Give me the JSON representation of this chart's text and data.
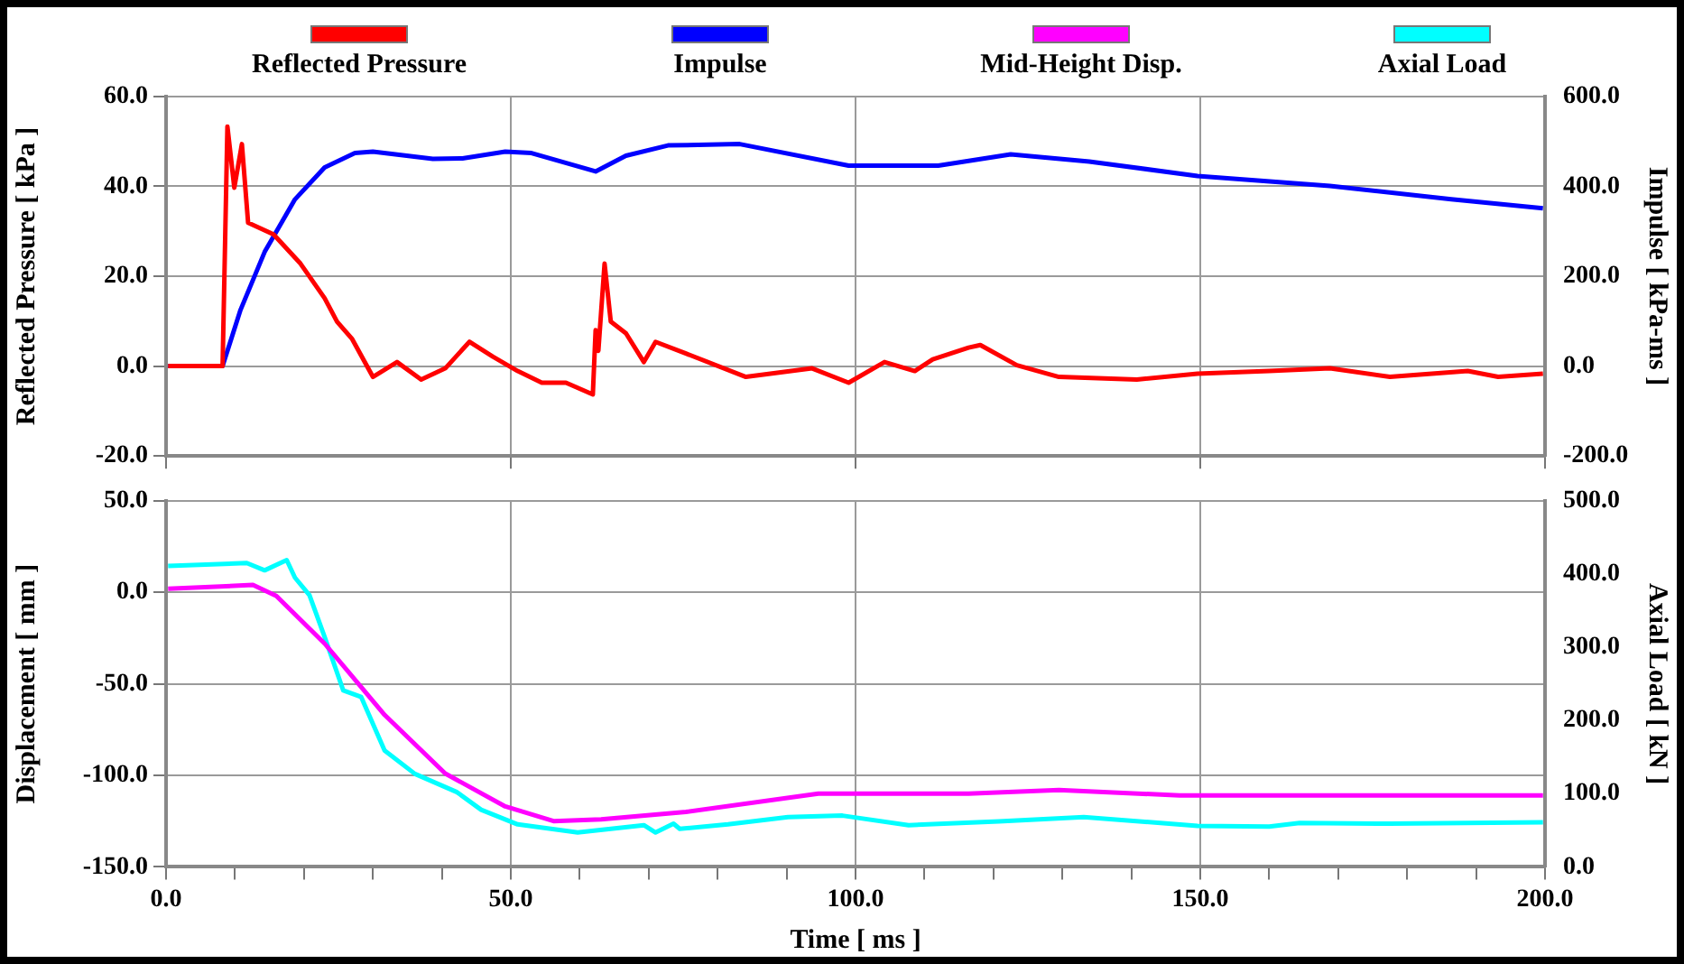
{
  "chart_data": [
    {
      "type": "line",
      "ylabel": "Reflected Pressure [ kPa ]",
      "y2label": "Impulse [ kPa-ms ]",
      "xlim": [
        0,
        200
      ],
      "xticks": [
        0,
        50,
        100,
        150,
        200
      ],
      "ylim": [
        -20,
        60
      ],
      "yticks": [
        {
          "value": -20,
          "label": "-20.0"
        },
        {
          "value": 0,
          "label": "0.0"
        },
        {
          "value": 20,
          "label": "20.0"
        },
        {
          "value": 40,
          "label": "40.0"
        },
        {
          "value": 60,
          "label": "60.0"
        }
      ],
      "y2lim": [
        -200,
        600
      ],
      "y2ticks": [
        {
          "value": -200,
          "label": "-200.0"
        },
        {
          "value": 0,
          "label": "0.0"
        },
        {
          "value": 200,
          "label": "200.0"
        },
        {
          "value": 400,
          "label": "400.0"
        },
        {
          "value": 600,
          "label": "600.0"
        }
      ],
      "grid": true,
      "legend": "top",
      "tick_labels": "y",
      "marker": "none",
      "line_style": "solid",
      "series": [
        {
          "name": "Reflected Pressure",
          "color": "#ff0000",
          "x": [
            0.3,
            8.2,
            8.9,
            9.9,
            11,
            11.9,
            15.6,
            19.5,
            23,
            24.8,
            27,
            30,
            33.5,
            37,
            40.5,
            44,
            47.4,
            51,
            54.5,
            58,
            61.9,
            62.3,
            62.7,
            63.6,
            64.5,
            66.7,
            69.3,
            71,
            75.4,
            84.1,
            93.7,
            99,
            104.2,
            108.6,
            111.2,
            116.4,
            118.1,
            123.4,
            129.5,
            140.8,
            149.6,
            160,
            168.8,
            177.5,
            188.8,
            193.2,
            199.7
          ],
          "values": [
            0,
            0,
            53.3,
            39.7,
            49.4,
            31.9,
            29.3,
            22.8,
            15.1,
            9.9,
            6,
            -2.4,
            0.9,
            -3,
            -0.5,
            5.4,
            2.1,
            -1.1,
            -3.7,
            -3.7,
            -6.3,
            8,
            3.4,
            22.8,
            9.9,
            7.3,
            0.9,
            5.4,
            2.8,
            -2.4,
            -0.5,
            -3.7,
            0.9,
            -1.1,
            1.5,
            4.1,
            4.7,
            0.2,
            -2.4,
            -3,
            -1.7,
            -1.1,
            -0.5,
            -2.4,
            -1.1,
            -2.4,
            -1.7
          ]
        },
        {
          "name": "Impulse",
          "color": "#0000ff",
          "axis": "y2",
          "x": [
            0.3,
            8.2,
            10.8,
            14.3,
            18.7,
            23,
            27.4,
            30,
            38.7,
            43,
            49.2,
            53,
            62.3,
            66.7,
            72.8,
            83.2,
            99,
            112,
            122.5,
            133.9,
            149.6,
            168.8,
            186.4,
            199.7
          ],
          "values": [
            0,
            0,
            125,
            254,
            371,
            442,
            474,
            477,
            461,
            462,
            477,
            474,
            433,
            468,
            491,
            494,
            446,
            446,
            471,
            455,
            423,
            401,
            371,
            351
          ]
        }
      ]
    },
    {
      "type": "line",
      "xlabel": "Time [ ms ]",
      "ylabel": "Displacement [ mm ]",
      "y2label": "Axial Load [ kN ]",
      "xlim": [
        0,
        200
      ],
      "xticks": [
        {
          "value": 0,
          "label": "0.0"
        },
        {
          "value": 10,
          "label": null
        },
        {
          "value": 20,
          "label": null
        },
        {
          "value": 30,
          "label": null
        },
        {
          "value": 40,
          "label": null
        },
        {
          "value": 50,
          "label": "50.0"
        },
        {
          "value": 60,
          "label": null
        },
        {
          "value": 70,
          "label": null
        },
        {
          "value": 80,
          "label": null
        },
        {
          "value": 90,
          "label": null
        },
        {
          "value": 100,
          "label": "100.0"
        },
        {
          "value": 110,
          "label": null
        },
        {
          "value": 120,
          "label": null
        },
        {
          "value": 130,
          "label": null
        },
        {
          "value": 140,
          "label": null
        },
        {
          "value": 150,
          "label": "150.0"
        },
        {
          "value": 160,
          "label": null
        },
        {
          "value": 170,
          "label": null
        },
        {
          "value": 180,
          "label": null
        },
        {
          "value": 190,
          "label": null
        },
        {
          "value": 200,
          "label": "200.0"
        }
      ],
      "ylim": [
        -150,
        50
      ],
      "yticks": [
        {
          "value": -150,
          "label": "-150.0"
        },
        {
          "value": -100,
          "label": "-100.0"
        },
        {
          "value": -50,
          "label": "-50.0"
        },
        {
          "value": 0,
          "label": "0.0"
        },
        {
          "value": 50,
          "label": "50.0"
        }
      ],
      "y2lim": [
        0,
        500
      ],
      "y2ticks": [
        {
          "value": 0,
          "label": "0.0"
        },
        {
          "value": 100,
          "label": "100.0"
        },
        {
          "value": 200,
          "label": "200.0"
        },
        {
          "value": 300,
          "label": "300.0"
        },
        {
          "value": 400,
          "label": "400.0"
        },
        {
          "value": 500,
          "label": "500.0"
        }
      ],
      "grid": true,
      "legend": "top",
      "marker": "none",
      "line_style": "solid",
      "series": [
        {
          "name": "Mid-Height Disp.",
          "color": "#ff00ff",
          "x": [
            0.3,
            12.6,
            16,
            23,
            31.7,
            40.5,
            49.2,
            56.2,
            63.1,
            75.4,
            94.6,
            99,
            116.4,
            129.5,
            147,
            164.4,
            199.7
          ],
          "values": [
            2,
            4,
            -2,
            -28,
            -67,
            -99,
            -117,
            -125,
            -124,
            -120,
            -110,
            -110,
            -110,
            -108,
            -111,
            -111,
            -111
          ]
        },
        {
          "name": "Axial Load",
          "color": "#00ffff",
          "axis": "y2",
          "x": [
            0.3,
            11.7,
            14.3,
            17.5,
            18.7,
            20.8,
            23,
            25.7,
            28.3,
            31.7,
            36.1,
            42.2,
            45.7,
            51,
            59.7,
            69.3,
            71,
            73.6,
            74.5,
            81.5,
            90.2,
            98.1,
            107.7,
            120.8,
            133.1,
            149.6,
            160,
            164.4,
            177.5,
            199.7
          ],
          "values": [
            411,
            415,
            405,
            419,
            395,
            371,
            314,
            241,
            232,
            159,
            127,
            102,
            78,
            58,
            47,
            57,
            47,
            59,
            52,
            58,
            68,
            70,
            57,
            62,
            68,
            56,
            55,
            60,
            59,
            61
          ]
        }
      ]
    }
  ]
}
